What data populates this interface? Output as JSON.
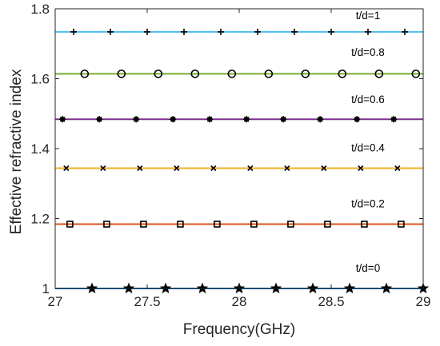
{
  "chart_data": {
    "type": "line",
    "xlabel": "Frequency(GHz)",
    "ylabel": "Effective refractive index",
    "xlim": [
      27,
      29
    ],
    "ylim": [
      1,
      1.8
    ],
    "xticks": [
      "27",
      "27.5",
      "28",
      "28.5",
      "29"
    ],
    "yticks": [
      "1",
      "1.2",
      "1.4",
      "1.6",
      "1.8"
    ],
    "grid": false,
    "series": [
      {
        "name": "t/d=0",
        "line_value": 1.0,
        "line_color": "#0072BD",
        "marker": "star",
        "marker_x": [
          27.2,
          27.4,
          27.6,
          27.8,
          28.0,
          28.2,
          28.4,
          28.6,
          28.8,
          29.0
        ],
        "marker_y": [
          1.0,
          1.0,
          1.0,
          1.0,
          1.0,
          1.0,
          1.0,
          1.0,
          1.0,
          1.0
        ]
      },
      {
        "name": "t/d=0.2",
        "line_value": 1.184,
        "line_color": "#D95319",
        "marker": "square",
        "marker_x": [
          27.08,
          27.28,
          27.48,
          27.68,
          27.88,
          28.08,
          28.28,
          28.48,
          28.68,
          28.88
        ],
        "marker_y": [
          1.184,
          1.184,
          1.184,
          1.184,
          1.184,
          1.184,
          1.184,
          1.184,
          1.184,
          1.184
        ]
      },
      {
        "name": "t/d=0.4",
        "line_value": 1.344,
        "line_color": "#EDB120",
        "marker": "x",
        "marker_x": [
          27.06,
          27.26,
          27.46,
          27.66,
          27.86,
          28.06,
          28.26,
          28.46,
          28.66,
          28.86
        ],
        "marker_y": [
          1.344,
          1.344,
          1.344,
          1.344,
          1.344,
          1.344,
          1.344,
          1.344,
          1.344,
          1.344
        ]
      },
      {
        "name": "t/d=0.6",
        "line_value": 1.484,
        "line_color": "#7E2F8E",
        "marker": "asterisk",
        "marker_x": [
          27.04,
          27.24,
          27.44,
          27.64,
          27.84,
          28.04,
          28.24,
          28.44,
          28.64,
          28.84
        ],
        "marker_y": [
          1.484,
          1.484,
          1.484,
          1.484,
          1.484,
          1.484,
          1.484,
          1.484,
          1.484,
          1.484
        ]
      },
      {
        "name": "t/d=0.8",
        "line_value": 1.614,
        "line_color": "#77AC30",
        "marker": "circle",
        "marker_x": [
          27.16,
          27.36,
          27.56,
          27.76,
          27.96,
          28.16,
          28.36,
          28.56,
          28.76,
          28.96
        ],
        "marker_y": [
          1.614,
          1.614,
          1.614,
          1.614,
          1.614,
          1.614,
          1.614,
          1.614,
          1.614,
          1.614
        ]
      },
      {
        "name": "t/d=1",
        "line_value": 1.734,
        "line_color": "#4DBEEE",
        "marker": "plus",
        "marker_x": [
          27.1,
          27.3,
          27.5,
          27.7,
          27.9,
          28.1,
          28.3,
          28.5,
          28.7,
          28.9
        ],
        "marker_y": [
          1.734,
          1.734,
          1.734,
          1.734,
          1.734,
          1.734,
          1.734,
          1.734,
          1.734,
          1.734
        ]
      }
    ],
    "annotations": [
      {
        "text": "t/d=1",
        "x": 28.7,
        "y": 1.77
      },
      {
        "text": "t/d=0.8",
        "x": 28.7,
        "y": 1.665
      },
      {
        "text": "t/d=0.6",
        "x": 28.7,
        "y": 1.53
      },
      {
        "text": "t/d=0.4",
        "x": 28.7,
        "y": 1.392
      },
      {
        "text": "t/d=0.2",
        "x": 28.7,
        "y": 1.232
      },
      {
        "text": "t/d=0",
        "x": 28.7,
        "y": 1.048
      }
    ]
  }
}
